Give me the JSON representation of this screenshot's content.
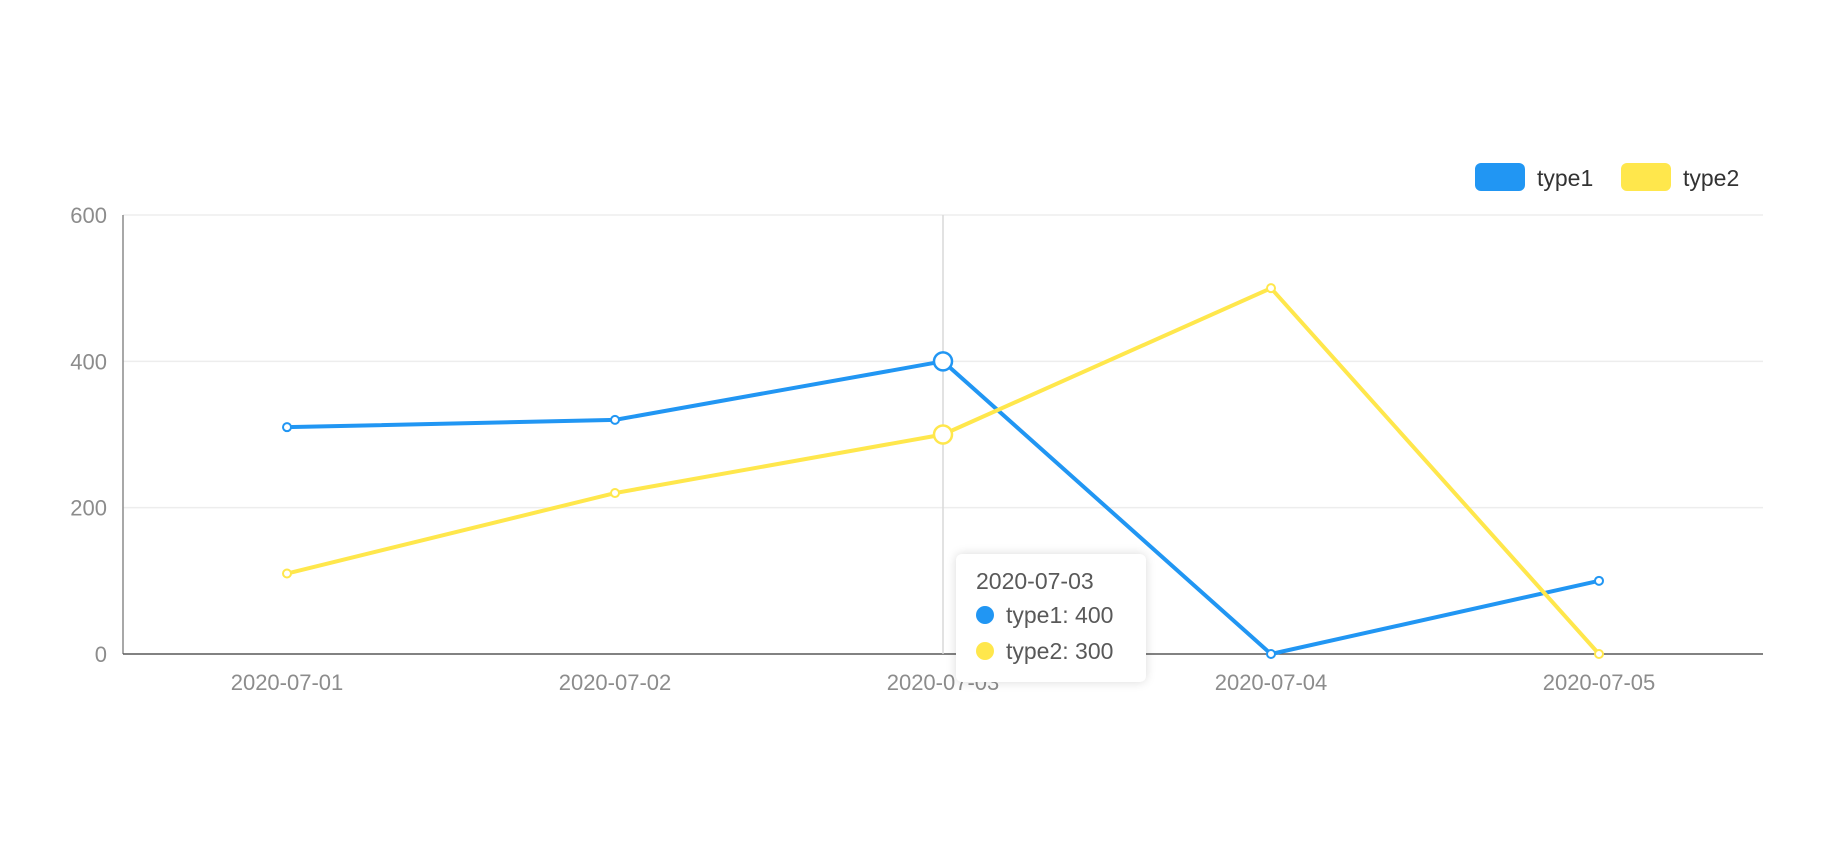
{
  "chart_data": {
    "type": "line",
    "categories": [
      "2020-07-01",
      "2020-07-02",
      "2020-07-03",
      "2020-07-04",
      "2020-07-05"
    ],
    "series": [
      {
        "name": "type1",
        "color": "#2196f3",
        "values": [
          310,
          320,
          400,
          0,
          100
        ]
      },
      {
        "name": "type2",
        "color": "#ffe74c",
        "values": [
          110,
          220,
          300,
          500,
          0
        ]
      }
    ],
    "yticks": [
      0,
      200,
      400,
      600
    ],
    "ylim": [
      0,
      600
    ],
    "grid": true,
    "legend_position": "top-right",
    "highlight_index": 2
  },
  "tooltip": {
    "title": "2020-07-03",
    "rows": [
      {
        "label": "type1: 400",
        "color": "#2196f3"
      },
      {
        "label": "type2: 300",
        "color": "#ffe74c"
      }
    ]
  }
}
